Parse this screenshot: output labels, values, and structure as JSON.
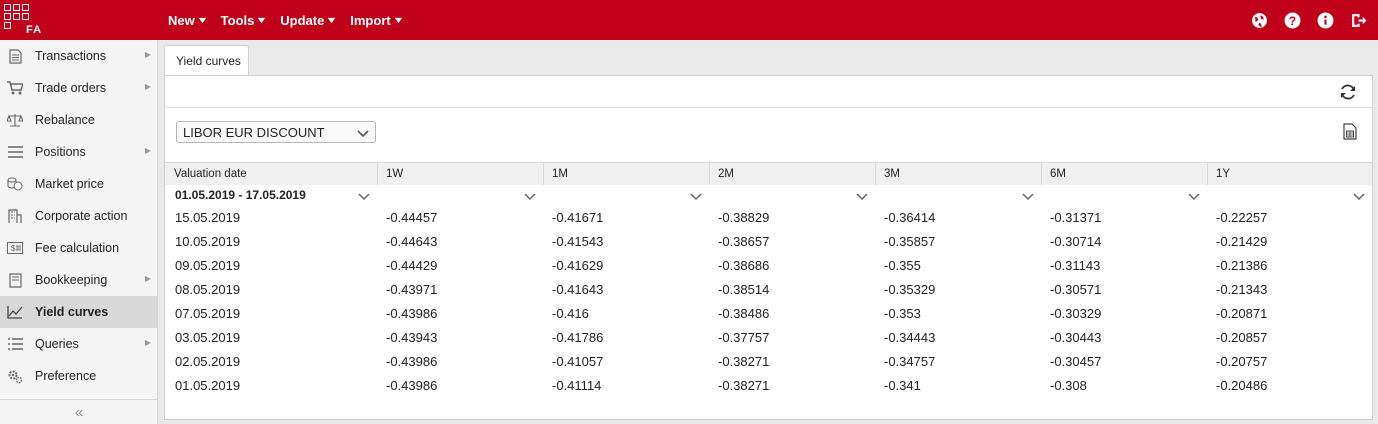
{
  "app": {
    "logo_text": "FA"
  },
  "topbar": {
    "menu": [
      {
        "label": "New"
      },
      {
        "label": "Tools"
      },
      {
        "label": "Update"
      },
      {
        "label": "Import"
      }
    ],
    "icons": [
      "globe-icon",
      "help-icon",
      "info-icon",
      "logout-icon"
    ]
  },
  "sidebar": {
    "items": [
      {
        "label": "Transactions",
        "icon": "document-icon",
        "has_submenu": true
      },
      {
        "label": "Trade orders",
        "icon": "cart-icon",
        "has_submenu": true
      },
      {
        "label": "Rebalance",
        "icon": "scale-icon",
        "has_submenu": false
      },
      {
        "label": "Positions",
        "icon": "list-icon",
        "has_submenu": true
      },
      {
        "label": "Market price",
        "icon": "coins-icon",
        "has_submenu": false
      },
      {
        "label": "Corporate action",
        "icon": "building-icon",
        "has_submenu": false
      },
      {
        "label": "Fee calculation",
        "icon": "fee-icon",
        "has_submenu": false
      },
      {
        "label": "Bookkeeping",
        "icon": "book-icon",
        "has_submenu": true
      },
      {
        "label": "Yield curves",
        "icon": "chart-line-icon",
        "has_submenu": false,
        "active": true
      },
      {
        "label": "Queries",
        "icon": "list-icon",
        "has_submenu": true
      },
      {
        "label": "Preference",
        "icon": "gears-icon",
        "has_submenu": false
      }
    ],
    "collapse_label": "«"
  },
  "main": {
    "tab_label": "Yield curves",
    "curve_select": {
      "value": "LIBOR EUR DISCOUNT"
    },
    "table": {
      "columns": [
        "Valuation date",
        "1W",
        "1M",
        "2M",
        "3M",
        "6M",
        "1Y"
      ],
      "filters": [
        "01.05.2019 - 17.05.2019",
        "",
        "",
        "",
        "",
        "",
        ""
      ],
      "rows": [
        [
          "15.05.2019",
          "-0.44457",
          "-0.41671",
          "-0.38829",
          "-0.36414",
          "-0.31371",
          "-0.22257"
        ],
        [
          "10.05.2019",
          "-0.44643",
          "-0.41543",
          "-0.38657",
          "-0.35857",
          "-0.30714",
          "-0.21429"
        ],
        [
          "09.05.2019",
          "-0.44429",
          "-0.41629",
          "-0.38686",
          "-0.355",
          "-0.31143",
          "-0.21386"
        ],
        [
          "08.05.2019",
          "-0.43971",
          "-0.41643",
          "-0.38514",
          "-0.35329",
          "-0.30571",
          "-0.21343"
        ],
        [
          "07.05.2019",
          "-0.43986",
          "-0.416",
          "-0.38486",
          "-0.353",
          "-0.30329",
          "-0.20871"
        ],
        [
          "03.05.2019",
          "-0.43943",
          "-0.41786",
          "-0.37757",
          "-0.34443",
          "-0.30443",
          "-0.20857"
        ],
        [
          "02.05.2019",
          "-0.43986",
          "-0.41057",
          "-0.38271",
          "-0.34757",
          "-0.30457",
          "-0.20757"
        ],
        [
          "01.05.2019",
          "-0.43986",
          "-0.41114",
          "-0.38271",
          "-0.341",
          "-0.308",
          "-0.20486"
        ]
      ]
    }
  },
  "colors": {
    "brand": "#c0001a",
    "active_nav": "#d9d9d9"
  }
}
